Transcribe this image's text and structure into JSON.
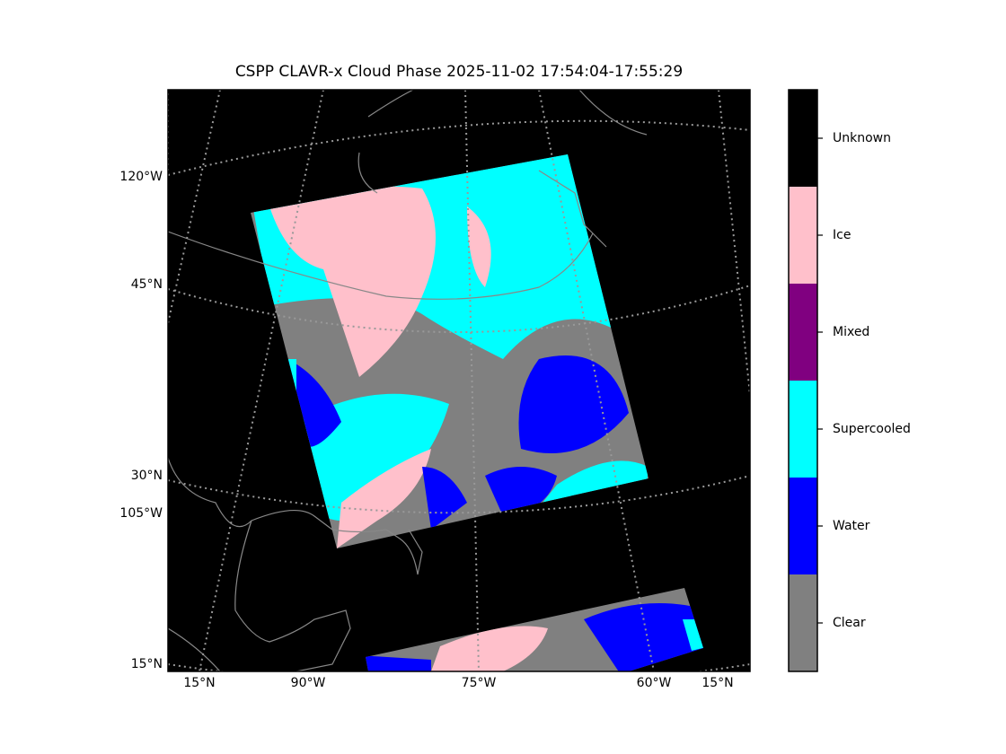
{
  "title": "CSPP CLAVR-x Cloud Phase 2025-11-02 17:54:04-17:55:29",
  "map": {
    "left_labels": [
      "120°W",
      "45°N",
      "30°N",
      "105°W",
      "15°N"
    ],
    "bottom_labels": [
      "15°N",
      "90°W",
      "75°W",
      "60°W",
      "15°N"
    ]
  },
  "colorbar": {
    "categories": [
      "Clear",
      "Water",
      "Supercooled",
      "Mixed",
      "Ice",
      "Unknown"
    ],
    "colors": [
      "#808080",
      "#0000ff",
      "#00ffff",
      "#800080",
      "#ffc0cb",
      "#000000"
    ]
  }
}
